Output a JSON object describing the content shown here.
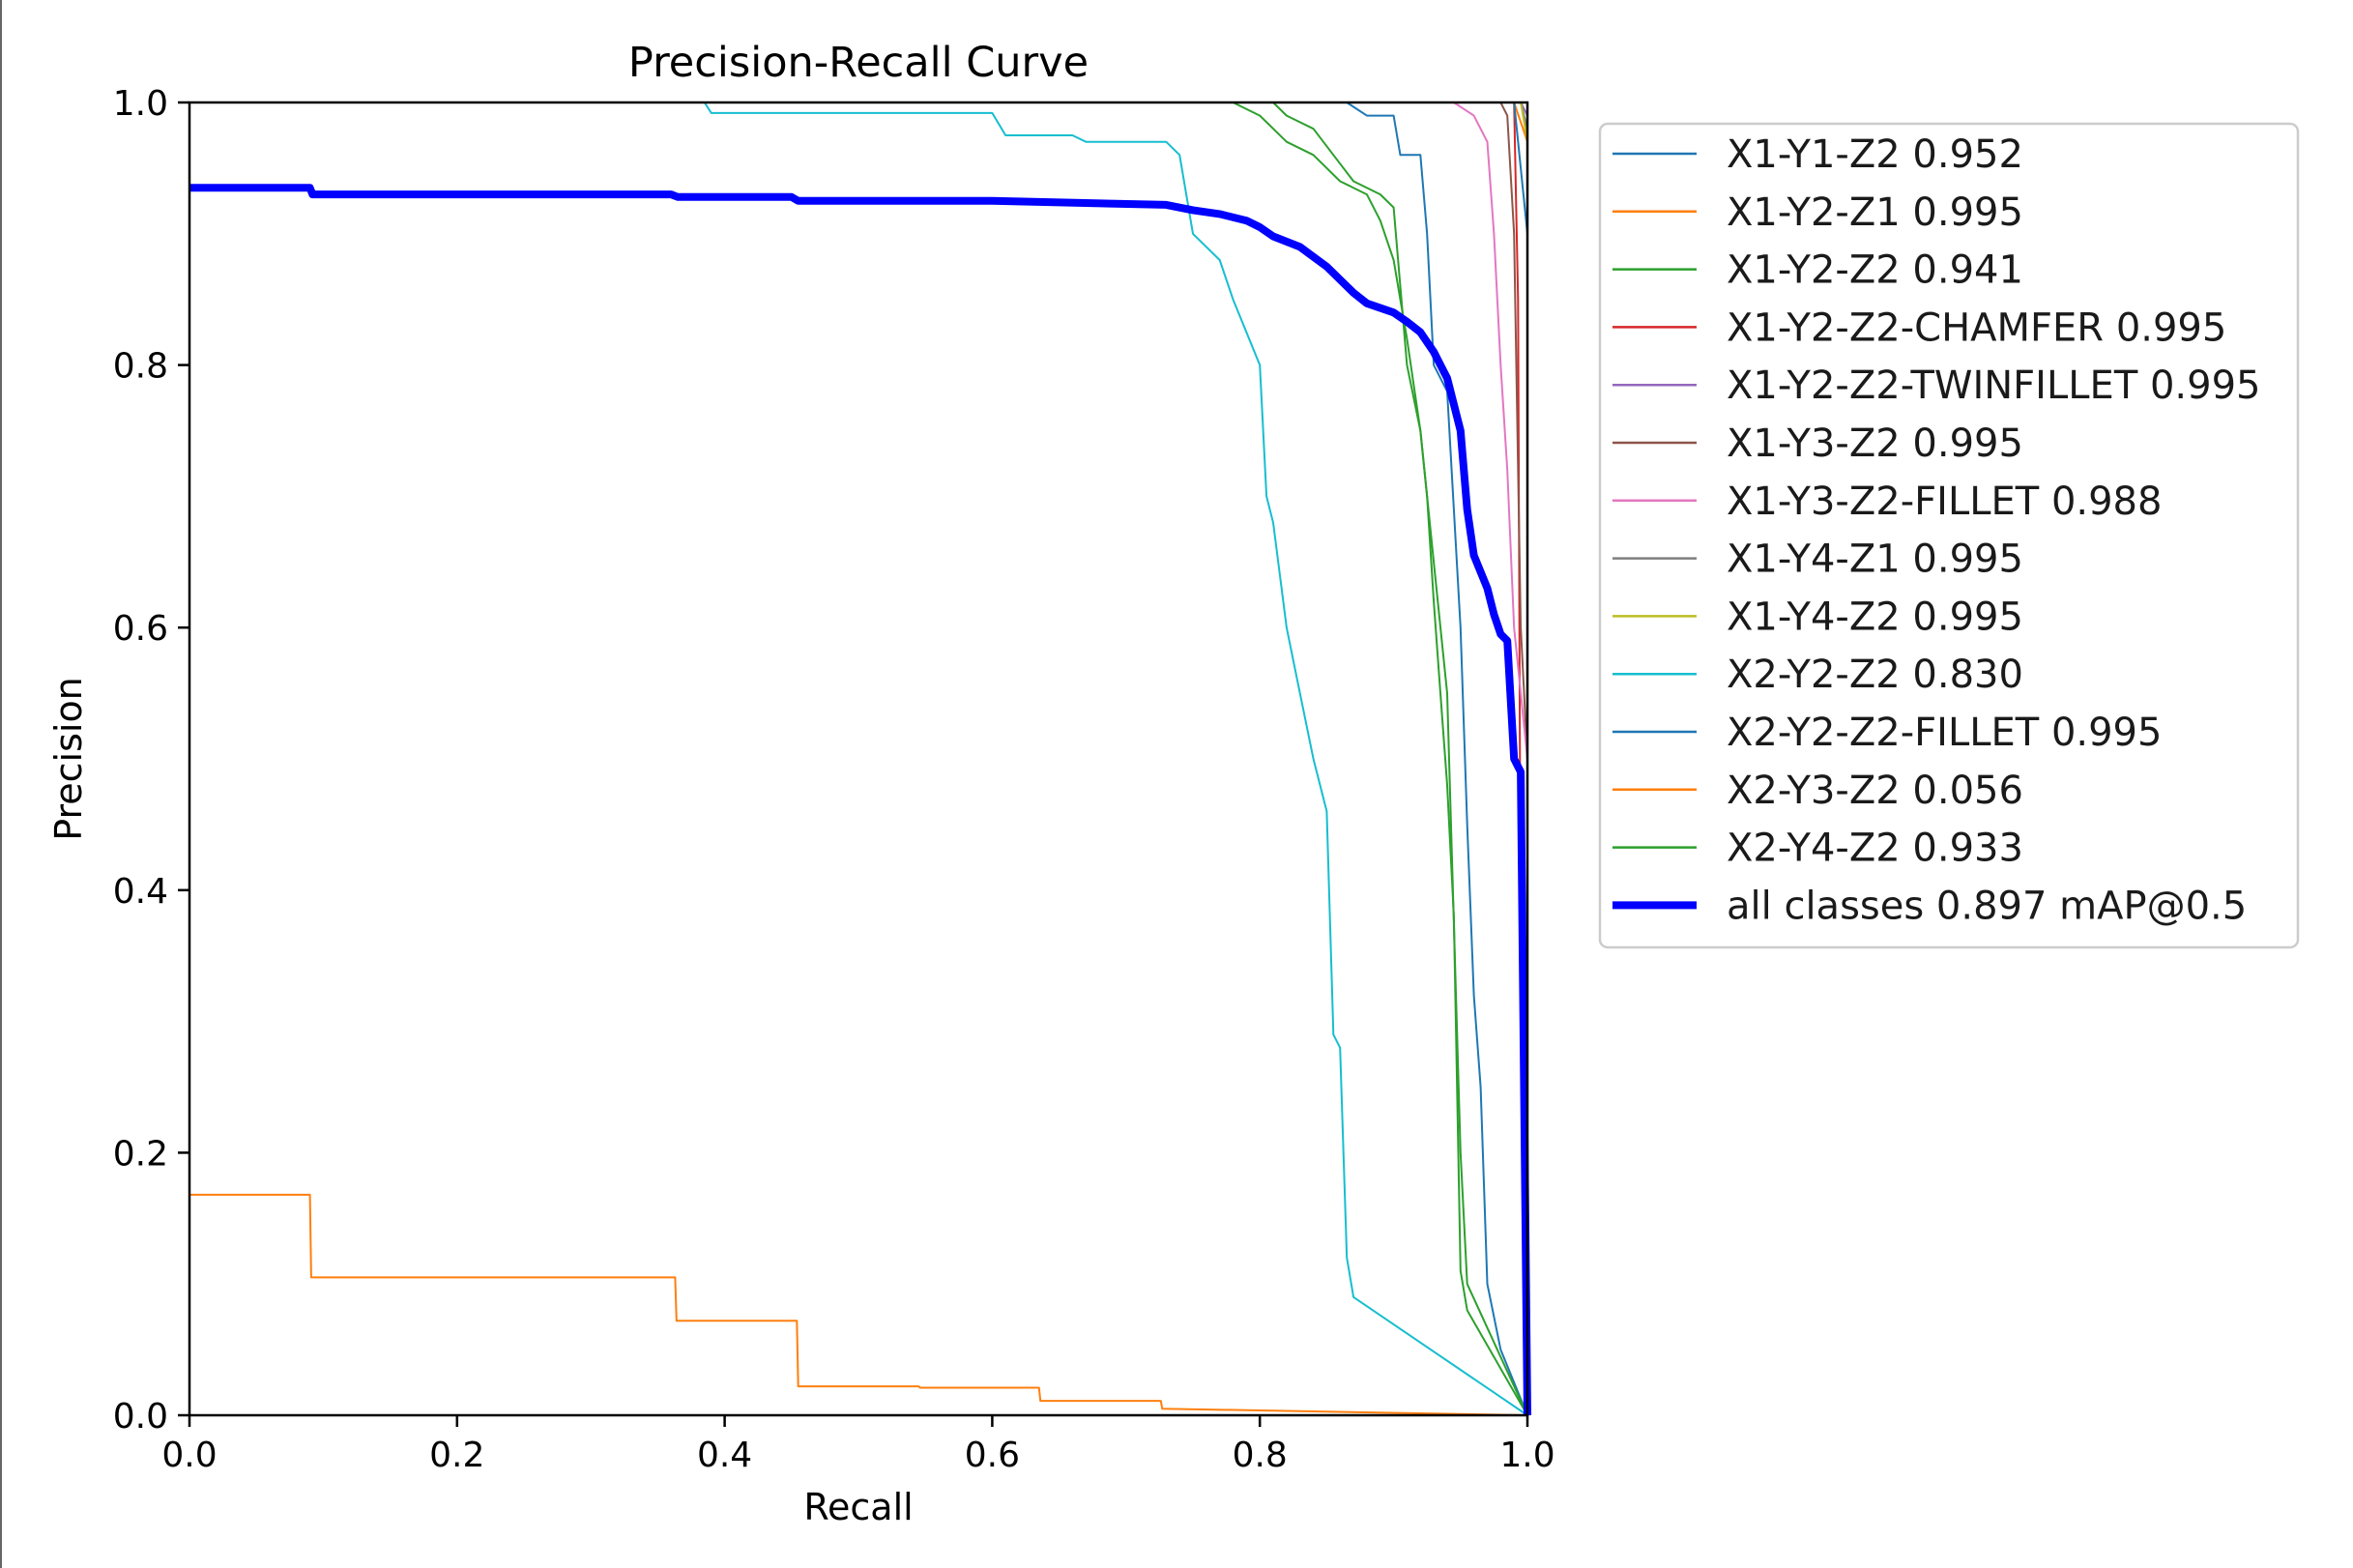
{
  "chart_data": {
    "type": "line",
    "title": "Precision-Recall Curve",
    "xlabel": "Recall",
    "ylabel": "Precision",
    "xlim": [
      0,
      1
    ],
    "ylim": [
      0,
      1
    ],
    "xticks": [
      "0.0",
      "0.2",
      "0.4",
      "0.6",
      "0.8",
      "1.0"
    ],
    "yticks": [
      "0.0",
      "0.2",
      "0.4",
      "0.6",
      "0.8",
      "1.0"
    ],
    "grid": false,
    "legend_position": "outside-right",
    "series": [
      {
        "name": "X1-Y1-Z2 0.952",
        "color": "#1f77b4",
        "width": 2,
        "points": [
          [
            0,
            1
          ],
          [
            0.865,
            1
          ],
          [
            0.88,
            0.99
          ],
          [
            0.9,
            0.99
          ],
          [
            0.905,
            0.96
          ],
          [
            0.92,
            0.96
          ],
          [
            0.925,
            0.9
          ],
          [
            0.93,
            0.8
          ],
          [
            0.94,
            0.78
          ],
          [
            0.95,
            0.6
          ],
          [
            0.955,
            0.45
          ],
          [
            0.96,
            0.32
          ],
          [
            0.965,
            0.25
          ],
          [
            0.97,
            0.1
          ],
          [
            0.98,
            0.05
          ],
          [
            1,
            0
          ]
        ]
      },
      {
        "name": "X1-Y2-Z1 0.995",
        "color": "#ff7f0e",
        "width": 2,
        "points": [
          [
            0,
            1
          ],
          [
            0.99,
            1
          ],
          [
            1,
            0.97
          ],
          [
            1,
            0
          ]
        ]
      },
      {
        "name": "X1-Y2-Z2 0.941",
        "color": "#2ca02c",
        "width": 2,
        "points": [
          [
            0,
            1
          ],
          [
            0.81,
            1
          ],
          [
            0.82,
            0.99
          ],
          [
            0.84,
            0.98
          ],
          [
            0.855,
            0.96
          ],
          [
            0.87,
            0.94
          ],
          [
            0.89,
            0.93
          ],
          [
            0.9,
            0.92
          ],
          [
            0.905,
            0.86
          ],
          [
            0.91,
            0.8
          ],
          [
            0.92,
            0.75
          ],
          [
            0.93,
            0.65
          ],
          [
            0.94,
            0.55
          ],
          [
            0.95,
            0.2
          ],
          [
            0.955,
            0.1
          ],
          [
            1,
            0
          ]
        ]
      },
      {
        "name": "X1-Y2-Z2-CHAMFER 0.995",
        "color": "#d62728",
        "width": 2,
        "points": [
          [
            0,
            1
          ],
          [
            0.99,
            1
          ],
          [
            0.993,
            0.85
          ],
          [
            0.995,
            0.35
          ],
          [
            1,
            0.35
          ],
          [
            1,
            0
          ]
        ]
      },
      {
        "name": "X1-Y2-Z2-TWINFILLET 0.995",
        "color": "#9467bd",
        "width": 2,
        "points": [
          [
            0,
            1
          ],
          [
            0.995,
            1
          ],
          [
            1,
            0.99
          ],
          [
            1,
            0
          ]
        ]
      },
      {
        "name": "X1-Y3-Z2 0.995",
        "color": "#8c564b",
        "width": 2,
        "points": [
          [
            0,
            1
          ],
          [
            0.98,
            1
          ],
          [
            0.985,
            0.99
          ],
          [
            0.99,
            0.9
          ],
          [
            0.995,
            0.6
          ],
          [
            1,
            0.5
          ],
          [
            1,
            0
          ]
        ]
      },
      {
        "name": "X1-Y3-Z2-FILLET 0.988",
        "color": "#e377c2",
        "width": 2,
        "points": [
          [
            0,
            1
          ],
          [
            0.945,
            1
          ],
          [
            0.96,
            0.99
          ],
          [
            0.97,
            0.97
          ],
          [
            0.975,
            0.9
          ],
          [
            0.98,
            0.8
          ],
          [
            0.985,
            0.72
          ],
          [
            0.99,
            0.6
          ],
          [
            0.995,
            0.55
          ],
          [
            1,
            0.5
          ],
          [
            1,
            0
          ]
        ]
      },
      {
        "name": "X1-Y4-Z1 0.995",
        "color": "#7f7f7f",
        "width": 2,
        "points": [
          [
            0,
            1
          ],
          [
            0.995,
            1
          ],
          [
            1,
            0.98
          ],
          [
            1,
            0
          ]
        ]
      },
      {
        "name": "X1-Y4-Z2 0.995",
        "color": "#bcbd22",
        "width": 2,
        "points": [
          [
            0,
            1
          ],
          [
            0.995,
            1
          ],
          [
            1,
            0.97
          ],
          [
            1,
            0
          ]
        ]
      },
      {
        "name": "X2-Y2-Z2 0.830",
        "color": "#17becf",
        "width": 2,
        "points": [
          [
            0,
            1
          ],
          [
            0.385,
            1
          ],
          [
            0.39,
            0.992
          ],
          [
            0.6,
            0.992
          ],
          [
            0.61,
            0.975
          ],
          [
            0.66,
            0.975
          ],
          [
            0.67,
            0.97
          ],
          [
            0.73,
            0.97
          ],
          [
            0.74,
            0.96
          ],
          [
            0.75,
            0.9
          ],
          [
            0.77,
            0.88
          ],
          [
            0.78,
            0.85
          ],
          [
            0.8,
            0.8
          ],
          [
            0.805,
            0.7
          ],
          [
            0.81,
            0.68
          ],
          [
            0.82,
            0.6
          ],
          [
            0.83,
            0.55
          ],
          [
            0.84,
            0.5
          ],
          [
            0.85,
            0.46
          ],
          [
            0.855,
            0.29
          ],
          [
            0.86,
            0.28
          ],
          [
            0.865,
            0.12
          ],
          [
            0.87,
            0.09
          ],
          [
            1,
            0
          ]
        ]
      },
      {
        "name": "X2-Y2-Z2-FILLET 0.995",
        "color": "#1f77b4",
        "width": 2,
        "points": [
          [
            0,
            1
          ],
          [
            0.99,
            1
          ],
          [
            0.995,
            0.95
          ],
          [
            1,
            0.9
          ],
          [
            1,
            0
          ]
        ]
      },
      {
        "name": "X2-Y3-Z2 0.056",
        "color": "#ff7f0e",
        "width": 2,
        "points": [
          [
            0,
            0.168
          ],
          [
            0.09,
            0.168
          ],
          [
            0.091,
            0.105
          ],
          [
            0.363,
            0.105
          ],
          [
            0.364,
            0.072
          ],
          [
            0.454,
            0.072
          ],
          [
            0.455,
            0.022
          ],
          [
            0.545,
            0.022
          ],
          [
            0.546,
            0.021
          ],
          [
            0.635,
            0.021
          ],
          [
            0.636,
            0.011
          ],
          [
            0.726,
            0.011
          ],
          [
            0.727,
            0.005
          ],
          [
            1,
            0
          ]
        ]
      },
      {
        "name": "X2-Y4-Z2 0.933",
        "color": "#2ca02c",
        "width": 2,
        "points": [
          [
            0,
            1
          ],
          [
            0.78,
            1
          ],
          [
            0.8,
            0.99
          ],
          [
            0.82,
            0.97
          ],
          [
            0.84,
            0.96
          ],
          [
            0.86,
            0.94
          ],
          [
            0.88,
            0.93
          ],
          [
            0.89,
            0.91
          ],
          [
            0.9,
            0.88
          ],
          [
            0.91,
            0.82
          ],
          [
            0.92,
            0.75
          ],
          [
            0.925,
            0.7
          ],
          [
            0.93,
            0.62
          ],
          [
            0.935,
            0.55
          ],
          [
            0.94,
            0.48
          ],
          [
            0.945,
            0.38
          ],
          [
            0.95,
            0.11
          ],
          [
            0.955,
            0.08
          ],
          [
            1,
            0
          ]
        ]
      },
      {
        "name": "all classes 0.897 mAP@0.5",
        "color": "#0000ff",
        "width": 8,
        "points": [
          [
            0,
            0.935
          ],
          [
            0.09,
            0.935
          ],
          [
            0.092,
            0.93
          ],
          [
            0.36,
            0.93
          ],
          [
            0.365,
            0.928
          ],
          [
            0.45,
            0.928
          ],
          [
            0.455,
            0.925
          ],
          [
            0.6,
            0.925
          ],
          [
            0.73,
            0.922
          ],
          [
            0.75,
            0.918
          ],
          [
            0.77,
            0.915
          ],
          [
            0.79,
            0.91
          ],
          [
            0.8,
            0.905
          ],
          [
            0.81,
            0.898
          ],
          [
            0.83,
            0.89
          ],
          [
            0.85,
            0.875
          ],
          [
            0.86,
            0.865
          ],
          [
            0.87,
            0.855
          ],
          [
            0.88,
            0.847
          ],
          [
            0.9,
            0.84
          ],
          [
            0.91,
            0.833
          ],
          [
            0.92,
            0.825
          ],
          [
            0.93,
            0.81
          ],
          [
            0.94,
            0.79
          ],
          [
            0.945,
            0.77
          ],
          [
            0.95,
            0.75
          ],
          [
            0.955,
            0.69
          ],
          [
            0.96,
            0.655
          ],
          [
            0.97,
            0.63
          ],
          [
            0.975,
            0.61
          ],
          [
            0.98,
            0.595
          ],
          [
            0.985,
            0.59
          ],
          [
            0.99,
            0.5
          ],
          [
            0.995,
            0.49
          ],
          [
            1,
            0.0
          ]
        ]
      }
    ]
  }
}
